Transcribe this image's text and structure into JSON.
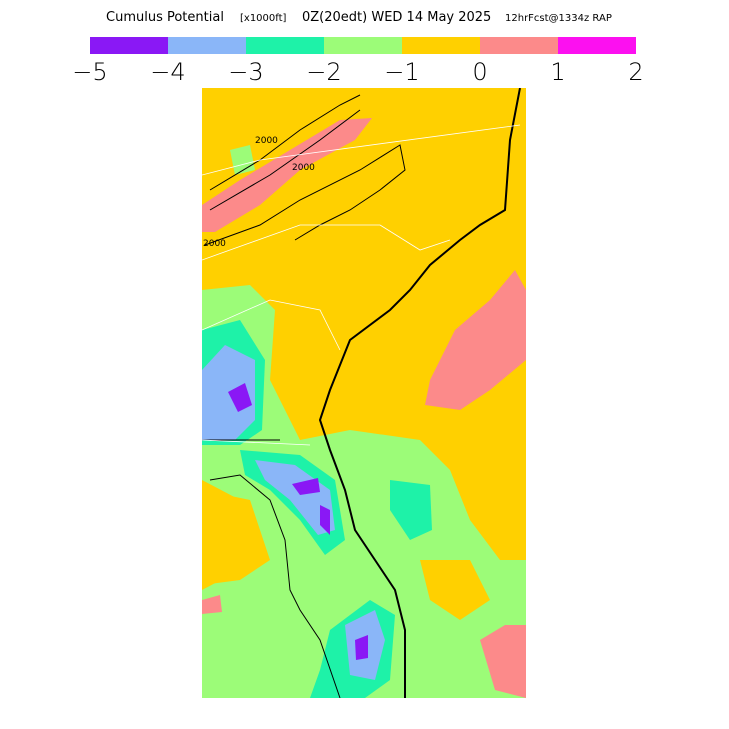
{
  "header": {
    "product": "Cumulus Potential",
    "units": "[x1000ft]",
    "valid": "0Z(20edt) WED 14 May 2025",
    "forecast": "12hrFcst@1334z RAP"
  },
  "colorbar": {
    "colors": [
      "#8a18f5",
      "#8ab6f8",
      "#1ef2a8",
      "#9cfc78",
      "#ffd000",
      "#fc8a8a",
      "#fc10f0"
    ],
    "labels": [
      "−5",
      "−4",
      "−3",
      "−2",
      "−1",
      "0",
      "1",
      "2"
    ]
  },
  "contour_labels": [
    "2000",
    "2000",
    "2000"
  ]
}
